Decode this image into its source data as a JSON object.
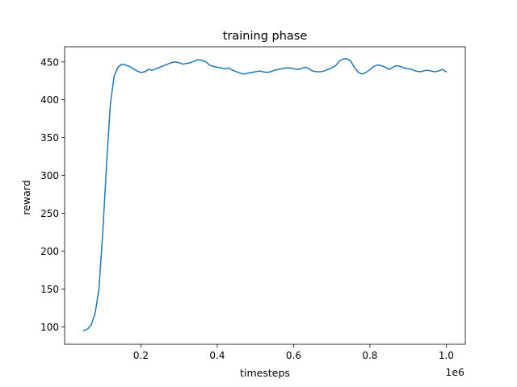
{
  "chart_data": {
    "type": "line",
    "title": "training phase",
    "xlabel": "timesteps",
    "ylabel": "reward",
    "x_offset_text": "1e6",
    "xlim": [
      0.0,
      1.05
    ],
    "ylim": [
      77,
      470
    ],
    "xticks": [
      {
        "value": 0.2,
        "label": "0.2"
      },
      {
        "value": 0.4,
        "label": "0.4"
      },
      {
        "value": 0.6,
        "label": "0.6"
      },
      {
        "value": 0.8,
        "label": "0.8"
      },
      {
        "value": 1.0,
        "label": "1.0"
      }
    ],
    "yticks": [
      {
        "value": 100,
        "label": "100"
      },
      {
        "value": 150,
        "label": "150"
      },
      {
        "value": 200,
        "label": "200"
      },
      {
        "value": 250,
        "label": "250"
      },
      {
        "value": 300,
        "label": "300"
      },
      {
        "value": 350,
        "label": "350"
      },
      {
        "value": 400,
        "label": "400"
      },
      {
        "value": 450,
        "label": "450"
      }
    ],
    "grid": false,
    "series": [
      {
        "color": "#1f77b4",
        "x": [
          0.05,
          0.06,
          0.07,
          0.08,
          0.09,
          0.1,
          0.11,
          0.12,
          0.13,
          0.14,
          0.15,
          0.16,
          0.17,
          0.18,
          0.19,
          0.2,
          0.21,
          0.22,
          0.23,
          0.24,
          0.25,
          0.26,
          0.27,
          0.28,
          0.29,
          0.3,
          0.31,
          0.32,
          0.33,
          0.34,
          0.35,
          0.36,
          0.37,
          0.38,
          0.39,
          0.4,
          0.41,
          0.42,
          0.43,
          0.44,
          0.45,
          0.46,
          0.47,
          0.48,
          0.49,
          0.5,
          0.51,
          0.52,
          0.53,
          0.54,
          0.55,
          0.56,
          0.57,
          0.58,
          0.59,
          0.6,
          0.61,
          0.62,
          0.63,
          0.64,
          0.65,
          0.66,
          0.67,
          0.68,
          0.69,
          0.7,
          0.71,
          0.72,
          0.73,
          0.74,
          0.75,
          0.76,
          0.77,
          0.78,
          0.79,
          0.8,
          0.81,
          0.82,
          0.83,
          0.84,
          0.85,
          0.86,
          0.87,
          0.88,
          0.89,
          0.9,
          0.91,
          0.92,
          0.93,
          0.94,
          0.95,
          0.96,
          0.97,
          0.98,
          0.99,
          1.0
        ],
        "y": [
          95,
          97,
          103,
          118,
          150,
          225,
          315,
          395,
          432,
          443,
          447,
          446,
          444,
          441,
          438,
          436,
          437,
          440,
          439,
          441,
          443,
          445,
          447,
          449,
          450,
          449,
          447,
          448,
          449,
          451,
          453,
          452,
          450,
          446,
          444,
          443,
          442,
          441,
          442,
          439,
          437,
          435,
          434,
          435,
          436,
          437,
          438,
          437,
          436,
          437,
          439,
          440,
          441,
          442,
          442,
          441,
          440,
          441,
          443,
          441,
          438,
          437,
          437,
          438,
          440,
          442,
          445,
          451,
          454,
          454,
          451,
          442,
          436,
          434,
          436,
          440,
          444,
          446,
          445,
          443,
          440,
          443,
          445,
          444,
          442,
          441,
          440,
          438,
          437,
          438,
          439,
          438,
          437,
          438,
          440,
          437
        ]
      }
    ]
  }
}
